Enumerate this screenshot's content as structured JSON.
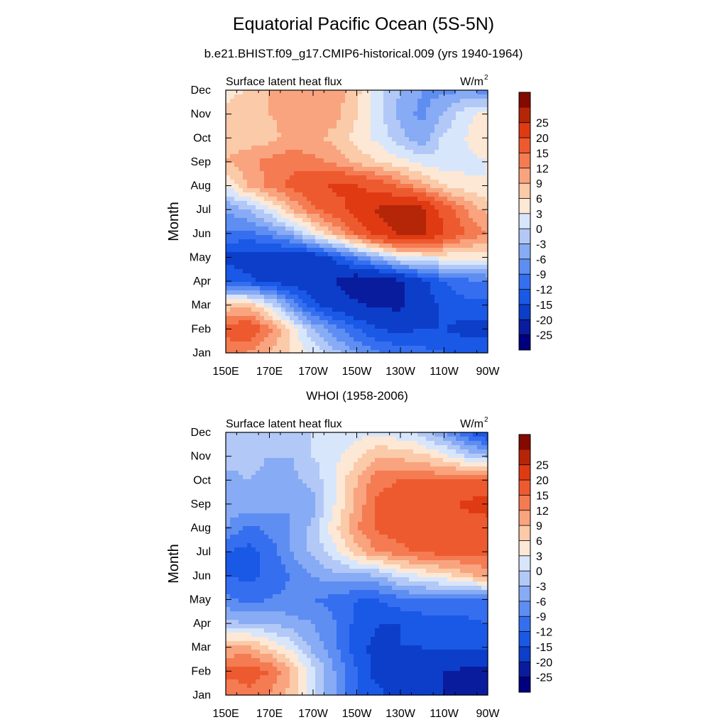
{
  "title": "Equatorial Pacific Ocean (5S-5N)",
  "colors": [
    "#00007f",
    "#0a1c9e",
    "#0c3ec9",
    "#1a58e6",
    "#356ff0",
    "#5e8ef2",
    "#87abf4",
    "#b2c8f7",
    "#d8e6fb",
    "#fde8d6",
    "#fbcaa9",
    "#f9a47e",
    "#f47b52",
    "#ee5a2f",
    "#e03a13",
    "#b42607",
    "#840a00"
  ],
  "colorbar_labels": [
    "-25",
    "-20",
    "-15",
    "-12",
    "-9",
    "-6",
    "-3",
    "0",
    "3",
    "6",
    "9",
    "12",
    "15",
    "20",
    "25"
  ],
  "chart_data": [
    {
      "type": "heatmap",
      "title": "b.e21.BHIST.f09_g17.CMIP6-historical.009 (yrs 1940-1964)",
      "left_label": "Surface latent heat flux",
      "right_label": "W/m",
      "units_sup": "2",
      "ylabel": "Month",
      "x_tick_labels": [
        "150E",
        "170E",
        "170W",
        "150W",
        "130W",
        "110W",
        "90W"
      ],
      "y_tick_labels": [
        "Jan",
        "Feb",
        "Mar",
        "Apr",
        "May",
        "Jun",
        "Jul",
        "Aug",
        "Sep",
        "Oct",
        "Nov",
        "Dec"
      ],
      "levels": [
        -25,
        -20,
        -15,
        -12,
        -9,
        -6,
        -3,
        0,
        3,
        6,
        9,
        12,
        15,
        20,
        25
      ],
      "columns_lon": [
        "150E",
        "160E",
        "170E",
        "180",
        "170W",
        "160W",
        "150W",
        "140W",
        "130W",
        "120W",
        "110W",
        "100W",
        "90W"
      ],
      "rows_month": [
        "Jan",
        "Feb",
        "Mar",
        "Apr",
        "May",
        "Jun",
        "Jul",
        "Aug",
        "Sep",
        "Oct",
        "Nov",
        "Dec"
      ],
      "values": [
        [
          13,
          12,
          9,
          6,
          2,
          -2,
          -6,
          -9,
          -10,
          -11,
          -12,
          -13,
          -13
        ],
        [
          16,
          19,
          13,
          5,
          -3,
          -8,
          -12,
          -15,
          -16,
          -15,
          -15,
          -16,
          -16
        ],
        [
          7,
          8,
          2,
          -7,
          -14,
          -17,
          -19,
          -21,
          -21,
          -17,
          -14,
          -13,
          -13
        ],
        [
          -12,
          -14,
          -16,
          -17,
          -18,
          -20,
          -24,
          -24,
          -21,
          -16,
          -12,
          -10,
          -9
        ],
        [
          -16,
          -17,
          -18,
          -18,
          -18,
          -14,
          -8,
          -3,
          2,
          3,
          4,
          4,
          4
        ],
        [
          -9,
          -10,
          -8,
          -4,
          3,
          9,
          16,
          22,
          26,
          26,
          20,
          15,
          12
        ],
        [
          -6,
          -3,
          2,
          9,
          14,
          18,
          22,
          26,
          28,
          27,
          18,
          12,
          8
        ],
        [
          3,
          9,
          13,
          16,
          18,
          21,
          20,
          18,
          14,
          10,
          6,
          4,
          3
        ],
        [
          9,
          11,
          13,
          14,
          13,
          11,
          8,
          6,
          4,
          2,
          1,
          2,
          3
        ],
        [
          8,
          7,
          8,
          10,
          10,
          8,
          5,
          2,
          -2,
          -5,
          1,
          3,
          6
        ],
        [
          7,
          8,
          9,
          10,
          11,
          10,
          6,
          1,
          -4,
          -7,
          -3,
          2,
          4
        ],
        [
          5,
          6,
          9,
          10,
          12,
          11,
          7,
          1,
          -3,
          -6,
          -7,
          -6,
          -8
        ]
      ]
    },
    {
      "type": "heatmap",
      "title": "WHOI (1958-2006)",
      "left_label": "Surface latent heat flux",
      "right_label": "W/m",
      "units_sup": "2",
      "ylabel": "Month",
      "x_tick_labels": [
        "150E",
        "170E",
        "170W",
        "150W",
        "130W",
        "110W",
        "90W"
      ],
      "y_tick_labels": [
        "Jan",
        "Feb",
        "Mar",
        "Apr",
        "May",
        "Jun",
        "Jul",
        "Aug",
        "Sep",
        "Oct",
        "Nov",
        "Dec"
      ],
      "levels": [
        -25,
        -20,
        -15,
        -12,
        -9,
        -6,
        -3,
        0,
        3,
        6,
        9,
        12,
        15,
        20,
        25
      ],
      "columns_lon": [
        "150E",
        "160E",
        "170E",
        "180",
        "170W",
        "160W",
        "150W",
        "140W",
        "130W",
        "120W",
        "110W",
        "100W",
        "90W"
      ],
      "rows_month": [
        "Jan",
        "Feb",
        "Mar",
        "Apr",
        "May",
        "Jun",
        "Jul",
        "Aug",
        "Sep",
        "Oct",
        "Nov",
        "Dec"
      ],
      "values": [
        [
          12,
          14,
          12,
          8,
          1,
          -6,
          -12,
          -14,
          -17,
          -18,
          -20,
          -22,
          -24
        ],
        [
          16,
          17,
          15,
          9,
          1,
          -6,
          -12,
          -17,
          -18,
          -19,
          -20,
          -21,
          -22
        ],
        [
          9,
          10,
          6,
          2,
          -4,
          -8,
          -14,
          -16,
          -15,
          -15,
          -14,
          -14,
          -14
        ],
        [
          -2,
          -3,
          -3,
          -5,
          -6,
          -9,
          -13,
          -15,
          -15,
          -14,
          -13,
          -13,
          -12
        ],
        [
          -8,
          -10,
          -9,
          -8,
          -9,
          -10,
          -12,
          -12,
          -10,
          -9,
          -9,
          -9,
          -9
        ],
        [
          -12,
          -13,
          -11,
          -9,
          -6,
          -4,
          -4,
          -3,
          1,
          3,
          5,
          8,
          10
        ],
        [
          -12,
          -13,
          -11,
          -6,
          -2,
          2,
          8,
          12,
          14,
          16,
          16,
          16,
          16
        ],
        [
          -6,
          -10,
          -8,
          -6,
          -2,
          5,
          12,
          16,
          17,
          16,
          16,
          17,
          18
        ],
        [
          -4,
          -4,
          -5,
          -6,
          -4,
          3,
          10,
          16,
          17,
          16,
          18,
          21,
          22
        ],
        [
          -4,
          -3,
          -4,
          -4,
          -2,
          3,
          9,
          14,
          15,
          15,
          15,
          16,
          16
        ],
        [
          -2,
          -2,
          -3,
          -3,
          0,
          2,
          5,
          9,
          8,
          7,
          4,
          0,
          -3
        ],
        [
          -2,
          -1,
          -1,
          -1,
          0,
          1,
          2,
          2,
          1,
          -1,
          -6,
          -12,
          -16
        ]
      ]
    }
  ]
}
